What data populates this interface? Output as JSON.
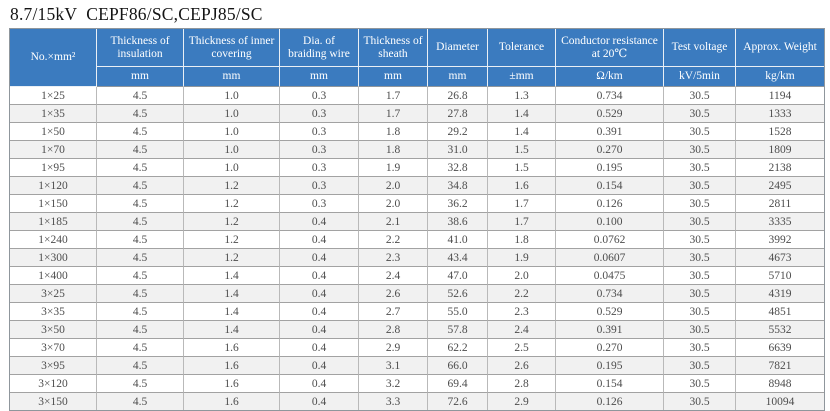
{
  "title": {
    "voltage_class": "8.7/15kV",
    "model": "CEPF86/SC,CEPJ85/SC"
  },
  "table": {
    "columns": [
      {
        "label": "No.×mm²",
        "unit": ""
      },
      {
        "label": "Thickness of insulation",
        "unit": "mm"
      },
      {
        "label": "Thickness of inner covering",
        "unit": "mm"
      },
      {
        "label": "Dia. of braiding wire",
        "unit": "mm"
      },
      {
        "label": "Thickness of sheath",
        "unit": "mm"
      },
      {
        "label": "Diameter",
        "unit": "mm"
      },
      {
        "label": "Tolerance",
        "unit": "±mm"
      },
      {
        "label": "Conductor resistance at 20℃",
        "unit": "Ω/km"
      },
      {
        "label": "Test voltage",
        "unit": "kV/5min"
      },
      {
        "label": "Approx. Weight",
        "unit": "kg/km"
      }
    ],
    "rows": [
      [
        "1×25",
        "4.5",
        "1.0",
        "0.3",
        "1.7",
        "26.8",
        "1.3",
        "0.734",
        "30.5",
        "1194"
      ],
      [
        "1×35",
        "4.5",
        "1.0",
        "0.3",
        "1.7",
        "27.8",
        "1.4",
        "0.529",
        "30.5",
        "1333"
      ],
      [
        "1×50",
        "4.5",
        "1.0",
        "0.3",
        "1.8",
        "29.2",
        "1.4",
        "0.391",
        "30.5",
        "1528"
      ],
      [
        "1×70",
        "4.5",
        "1.0",
        "0.3",
        "1.8",
        "31.0",
        "1.5",
        "0.270",
        "30.5",
        "1809"
      ],
      [
        "1×95",
        "4.5",
        "1.0",
        "0.3",
        "1.9",
        "32.8",
        "1.5",
        "0.195",
        "30.5",
        "2138"
      ],
      [
        "1×120",
        "4.5",
        "1.2",
        "0.3",
        "2.0",
        "34.8",
        "1.6",
        "0.154",
        "30.5",
        "2495"
      ],
      [
        "1×150",
        "4.5",
        "1.2",
        "0.3",
        "2.0",
        "36.2",
        "1.7",
        "0.126",
        "30.5",
        "2811"
      ],
      [
        "1×185",
        "4.5",
        "1.2",
        "0.4",
        "2.1",
        "38.6",
        "1.7",
        "0.100",
        "30.5",
        "3335"
      ],
      [
        "1×240",
        "4.5",
        "1.2",
        "0.4",
        "2.2",
        "41.0",
        "1.8",
        "0.0762",
        "30.5",
        "3992"
      ],
      [
        "1×300",
        "4.5",
        "1.2",
        "0.4",
        "2.3",
        "43.4",
        "1.9",
        "0.0607",
        "30.5",
        "4673"
      ],
      [
        "1×400",
        "4.5",
        "1.4",
        "0.4",
        "2.4",
        "47.0",
        "2.0",
        "0.0475",
        "30.5",
        "5710"
      ],
      [
        "3×25",
        "4.5",
        "1.4",
        "0.4",
        "2.6",
        "52.6",
        "2.2",
        "0.734",
        "30.5",
        "4319"
      ],
      [
        "3×35",
        "4.5",
        "1.4",
        "0.4",
        "2.7",
        "55.0",
        "2.3",
        "0.529",
        "30.5",
        "4851"
      ],
      [
        "3×50",
        "4.5",
        "1.4",
        "0.4",
        "2.8",
        "57.8",
        "2.4",
        "0.391",
        "30.5",
        "5532"
      ],
      [
        "3×70",
        "4.5",
        "1.6",
        "0.4",
        "2.9",
        "62.2",
        "2.5",
        "0.270",
        "30.5",
        "6639"
      ],
      [
        "3×95",
        "4.5",
        "1.6",
        "0.4",
        "3.1",
        "66.0",
        "2.6",
        "0.195",
        "30.5",
        "7821"
      ],
      [
        "3×120",
        "4.5",
        "1.6",
        "0.4",
        "3.2",
        "69.4",
        "2.8",
        "0.154",
        "30.5",
        "8948"
      ],
      [
        "3×150",
        "4.5",
        "1.6",
        "0.4",
        "3.3",
        "72.6",
        "2.9",
        "0.126",
        "30.5",
        "10094"
      ]
    ],
    "header_color": "#3b7bbf",
    "stripe_color": "#f1f1f1"
  }
}
